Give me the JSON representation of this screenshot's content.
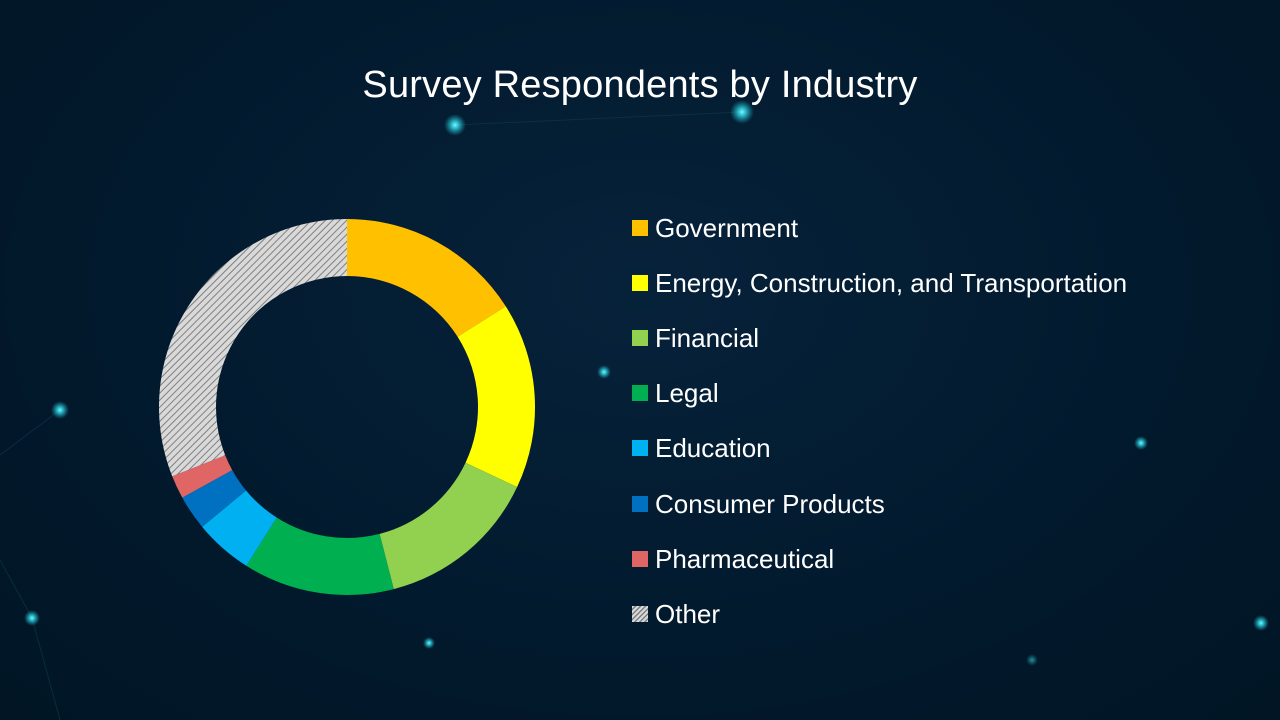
{
  "chart_data": {
    "type": "pie",
    "variant": "donut",
    "title": "Survey Respondents by Industry",
    "legend_position": "right",
    "series": [
      {
        "name": "Government",
        "value": 16,
        "color": "#FFC000"
      },
      {
        "name": "Energy, Construction, and Transportation",
        "value": 16,
        "color": "#FFFF00"
      },
      {
        "name": "Financial",
        "value": 14,
        "color": "#92D050"
      },
      {
        "name": "Legal",
        "value": 13,
        "color": "#00B050"
      },
      {
        "name": "Education",
        "value": 5,
        "color": "#00B0F0"
      },
      {
        "name": "Consumer Products",
        "value": 3,
        "color": "#0070C0"
      },
      {
        "name": "Pharmaceutical",
        "value": 2,
        "color": "#E06666"
      },
      {
        "name": "Other",
        "value": 31,
        "color": "hatched-gray"
      }
    ]
  }
}
